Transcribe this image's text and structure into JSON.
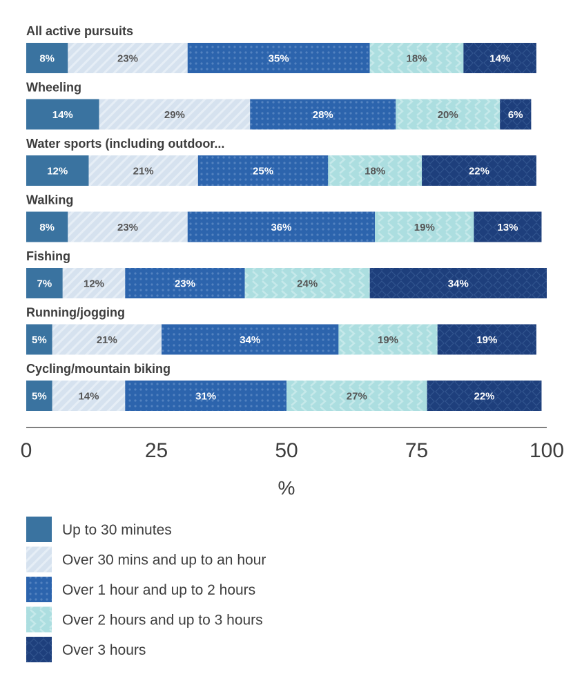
{
  "chart_data": {
    "type": "bar",
    "stacked": true,
    "orientation": "horizontal",
    "categories": [
      "All active pursuits",
      "Wheeling",
      "Water sports (including outdoor...",
      "Walking",
      "Fishing",
      "Running/jogging",
      "Cycling/mountain biking"
    ],
    "series": [
      {
        "name": "Up to 30 minutes",
        "values": [
          8,
          14,
          12,
          8,
          7,
          5,
          5
        ],
        "color": "#3a73a0",
        "pattern": "solid",
        "label_color": "#ffffff"
      },
      {
        "name": "Over 30 mins and up to an hour",
        "values": [
          23,
          29,
          21,
          23,
          12,
          21,
          14
        ],
        "color": "#d6e2ef",
        "pattern": "diagonal-stripes",
        "label_color": "#555555"
      },
      {
        "name": "Over 1 hour and up to 2 hours",
        "values": [
          35,
          28,
          25,
          36,
          23,
          34,
          31
        ],
        "color": "#2c64ad",
        "pattern": "dots",
        "label_color": "#ffffff"
      },
      {
        "name": "Over 2 hours and up to 3 hours",
        "values": [
          18,
          20,
          18,
          19,
          24,
          19,
          27
        ],
        "color": "#acdee0",
        "pattern": "chevrons",
        "label_color": "#555555"
      },
      {
        "name": "Over 3 hours",
        "values": [
          14,
          6,
          22,
          13,
          34,
          19,
          22
        ],
        "color": "#1e3f7c",
        "pattern": "diamonds",
        "label_color": "#ffffff"
      }
    ],
    "xlabel": "%",
    "xlim": [
      0,
      100
    ],
    "xticks": [
      "0",
      "25",
      "50",
      "75",
      "100"
    ],
    "value_suffix": "%",
    "legend_position": "bottom",
    "grid": false
  }
}
